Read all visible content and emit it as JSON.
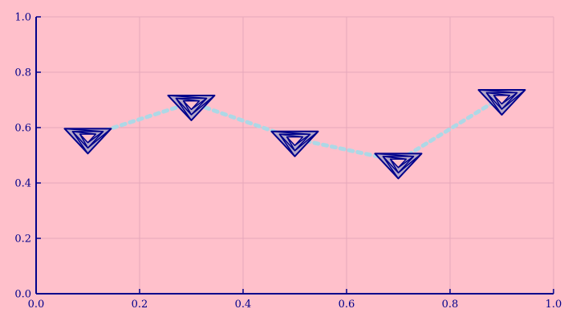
{
  "chart_data": {
    "type": "line",
    "title": "",
    "xlabel": "",
    "ylabel": "",
    "xlim": [
      0,
      1
    ],
    "ylim": [
      0,
      1
    ],
    "grid": true,
    "x_ticks": [
      "0.0",
      "0.2",
      "0.4",
      "0.6",
      "0.8",
      "1.0"
    ],
    "y_ticks": [
      "0.0",
      "0.2",
      "0.4",
      "0.6",
      "0.8",
      "1.0"
    ],
    "series": [
      {
        "x": [
          0.1,
          0.3,
          0.5,
          0.7,
          0.9
        ],
        "y": [
          0.57,
          0.69,
          0.56,
          0.48,
          0.71
        ],
        "line_style": "dotted",
        "marker": "penrose-triangle-icon"
      }
    ],
    "colors": {
      "background": "#ffc0cb",
      "axis": "#00008b",
      "grid": "#e6a8bb",
      "line": "#add8e6",
      "marker_fill": "#b4a7c8",
      "marker_stroke": "#00008b"
    }
  }
}
